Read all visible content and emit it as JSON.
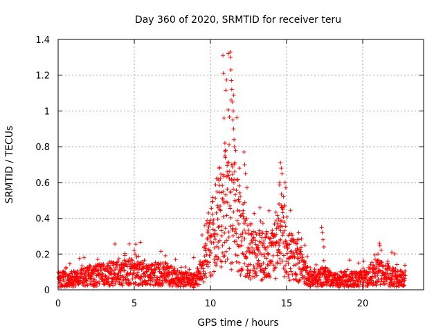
{
  "chart_data": {
    "type": "scatter",
    "title": "Day 360 of 2020, SRMTID for receiver teru",
    "xlabel": "GPS time / hours",
    "ylabel": "SRMTID / TECUs",
    "xlim": [
      0,
      24
    ],
    "ylim": [
      0,
      1.4
    ],
    "xticks": [
      0,
      5,
      10,
      15,
      20
    ],
    "yticks": [
      0,
      0.2,
      0.4,
      0.6,
      0.8,
      1,
      1.2,
      1.4
    ],
    "xtick_labels": [
      "0",
      "5",
      "10",
      "15",
      "20"
    ],
    "ytick_labels": [
      "0",
      "0.2",
      "0.4",
      "0.6",
      "0.8",
      "1",
      "1.2",
      "1.4"
    ],
    "grid": true,
    "marker": "+",
    "series_color": "#ff0000",
    "activity_profile": [
      {
        "x": 0.0,
        "level": 0.06
      },
      {
        "x": 1.0,
        "level": 0.06
      },
      {
        "x": 2.5,
        "level": 0.08
      },
      {
        "x": 4.0,
        "level": 0.09
      },
      {
        "x": 5.0,
        "level": 0.11
      },
      {
        "x": 6.0,
        "level": 0.08
      },
      {
        "x": 7.0,
        "level": 0.09
      },
      {
        "x": 8.0,
        "level": 0.06
      },
      {
        "x": 9.0,
        "level": 0.05
      },
      {
        "x": 9.5,
        "level": 0.12
      },
      {
        "x": 10.0,
        "level": 0.26
      },
      {
        "x": 10.5,
        "level": 0.38
      },
      {
        "x": 11.0,
        "level": 0.45
      },
      {
        "x": 11.5,
        "level": 0.42
      },
      {
        "x": 12.0,
        "level": 0.32
      },
      {
        "x": 12.5,
        "level": 0.22
      },
      {
        "x": 13.0,
        "level": 0.18
      },
      {
        "x": 13.5,
        "level": 0.2
      },
      {
        "x": 14.0,
        "level": 0.18
      },
      {
        "x": 14.5,
        "level": 0.3
      },
      {
        "x": 15.0,
        "level": 0.22
      },
      {
        "x": 15.5,
        "level": 0.16
      },
      {
        "x": 16.0,
        "level": 0.12
      },
      {
        "x": 16.5,
        "level": 0.06
      },
      {
        "x": 17.0,
        "level": 0.06
      },
      {
        "x": 17.5,
        "level": 0.08
      },
      {
        "x": 18.0,
        "level": 0.05
      },
      {
        "x": 19.0,
        "level": 0.06
      },
      {
        "x": 20.0,
        "level": 0.06
      },
      {
        "x": 21.0,
        "level": 0.1
      },
      {
        "x": 22.0,
        "level": 0.07
      },
      {
        "x": 22.8,
        "level": 0.06
      }
    ],
    "peaks": [
      {
        "x": 10.82,
        "y": 1.31
      },
      {
        "x": 10.85,
        "y": 1.21
      },
      {
        "x": 10.9,
        "y": 0.96
      },
      {
        "x": 10.95,
        "y": 0.82
      },
      {
        "x": 11.0,
        "y": 0.78
      },
      {
        "x": 10.98,
        "y": 0.74
      },
      {
        "x": 11.17,
        "y": 1.32
      },
      {
        "x": 11.3,
        "y": 1.33
      },
      {
        "x": 11.32,
        "y": 1.3
      },
      {
        "x": 11.35,
        "y": 1.23
      },
      {
        "x": 11.38,
        "y": 1.17
      },
      {
        "x": 11.4,
        "y": 1.12
      },
      {
        "x": 11.45,
        "y": 1.05
      },
      {
        "x": 11.5,
        "y": 1.0
      },
      {
        "x": 11.47,
        "y": 0.95
      },
      {
        "x": 11.52,
        "y": 0.9
      },
      {
        "x": 11.55,
        "y": 0.84
      },
      {
        "x": 11.58,
        "y": 0.8
      },
      {
        "x": 11.6,
        "y": 0.71
      },
      {
        "x": 11.1,
        "y": 0.66
      },
      {
        "x": 11.25,
        "y": 0.62
      },
      {
        "x": 10.6,
        "y": 0.68
      },
      {
        "x": 10.5,
        "y": 0.62
      },
      {
        "x": 12.2,
        "y": 0.77
      },
      {
        "x": 12.25,
        "y": 0.7
      },
      {
        "x": 12.3,
        "y": 0.65
      },
      {
        "x": 11.9,
        "y": 0.68
      },
      {
        "x": 14.6,
        "y": 0.71
      },
      {
        "x": 14.65,
        "y": 0.68
      },
      {
        "x": 14.7,
        "y": 0.65
      },
      {
        "x": 14.55,
        "y": 0.6
      },
      {
        "x": 14.9,
        "y": 0.6
      },
      {
        "x": 14.95,
        "y": 0.57
      },
      {
        "x": 14.8,
        "y": 0.52
      },
      {
        "x": 14.75,
        "y": 0.45
      },
      {
        "x": 14.5,
        "y": 0.48
      },
      {
        "x": 17.3,
        "y": 0.35
      },
      {
        "x": 17.35,
        "y": 0.32
      },
      {
        "x": 17.4,
        "y": 0.28
      },
      {
        "x": 17.45,
        "y": 0.24
      },
      {
        "x": 21.1,
        "y": 0.26
      },
      {
        "x": 21.0,
        "y": 0.2
      },
      {
        "x": 5.0,
        "y": 0.22
      },
      {
        "x": 5.05,
        "y": 0.2
      },
      {
        "x": 2.6,
        "y": 0.17
      },
      {
        "x": 7.05,
        "y": 0.19
      },
      {
        "x": 8.9,
        "y": 0.18
      },
      {
        "x": 13.2,
        "y": 0.33
      },
      {
        "x": 15.7,
        "y": 0.28
      },
      {
        "x": 16.2,
        "y": 0.25
      }
    ]
  }
}
